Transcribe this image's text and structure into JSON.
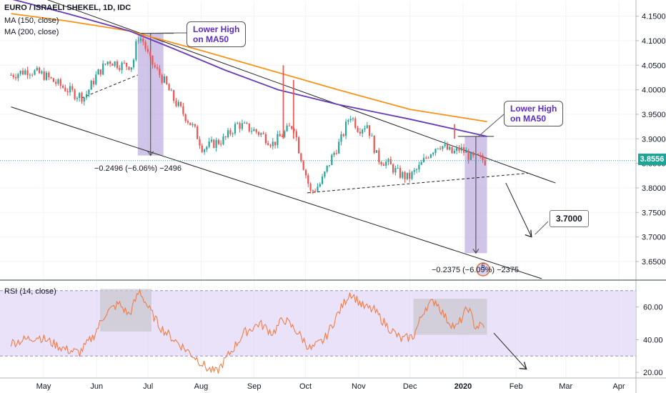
{
  "legend": {
    "title": "EURO / ISRAELI SHEKEL, 1D, IDC",
    "ma150": "MA (150, close)",
    "ma200": "MA (200, close)",
    "rsi": "RSI (14, close)"
  },
  "annotations": {
    "callout_left": [
      "Lower High",
      "on MA50"
    ],
    "callout_right": [
      "Lower High",
      "on MA50"
    ],
    "target_label": "3.7000",
    "measure_left": "−0.2496 (−6.06%) −2496",
    "measure_right": "−0.2375 (−6.09%) −2375",
    "event_badge": "6"
  },
  "current_price": "3.8556",
  "colors": {
    "up": "#26a69a",
    "down": "#ef5350",
    "ma150": "#f7931a",
    "ma200": "#673ab7",
    "rsi_line": "#f4743b",
    "rsi_band": "#e1d5f5",
    "measure_zone": "#b39ddb"
  },
  "chart_data": [
    {
      "type": "candlestick",
      "xlabel": "",
      "ylabel": "",
      "x_ticks": [
        "May",
        "Jun",
        "Jul",
        "Aug",
        "Sep",
        "Oct",
        "Nov",
        "Dec",
        "2020",
        "Feb",
        "Mar",
        "Apr"
      ],
      "y_ticks": [
        3.65,
        3.7,
        3.75,
        3.8,
        3.85,
        3.9,
        3.95,
        4.0,
        4.05,
        4.1,
        4.15
      ],
      "y_tick_labels": [
        "3.6500",
        "3.7000",
        "3.7500",
        "3.8000",
        "3.8500",
        "3.9000",
        "3.9500",
        "4.0000",
        "4.0500",
        "4.1000",
        "4.1500"
      ],
      "ylim": [
        3.615,
        4.18
      ],
      "close_path": [
        [
          "2019-04-12",
          4.03
        ],
        [
          "2019-04-22",
          4.04
        ],
        [
          "2019-05-01",
          4.03
        ],
        [
          "2019-05-10",
          4.01
        ],
        [
          "2019-05-20",
          3.99
        ],
        [
          "2019-05-25",
          3.985
        ],
        [
          "2019-06-01",
          4.03
        ],
        [
          "2019-06-08",
          4.06
        ],
        [
          "2019-06-15",
          4.05
        ],
        [
          "2019-06-22",
          4.05
        ],
        [
          "2019-06-25",
          4.11
        ],
        [
          "2019-06-28",
          4.1
        ],
        [
          "2019-07-02",
          4.06
        ],
        [
          "2019-07-06",
          4.04
        ],
        [
          "2019-07-10",
          4.02
        ],
        [
          "2019-07-16",
          3.98
        ],
        [
          "2019-07-22",
          3.95
        ],
        [
          "2019-07-28",
          3.92
        ],
        [
          "2019-08-02",
          3.88
        ],
        [
          "2019-08-08",
          3.89
        ],
        [
          "2019-08-15",
          3.9
        ],
        [
          "2019-08-22",
          3.93
        ],
        [
          "2019-08-30",
          3.92
        ],
        [
          "2019-09-05",
          3.91
        ],
        [
          "2019-09-12",
          3.89
        ],
        [
          "2019-09-18",
          3.91
        ],
        [
          "2019-09-24",
          3.93
        ],
        [
          "2019-09-27",
          3.88
        ],
        [
          "2019-10-01",
          3.83
        ],
        [
          "2019-10-04",
          3.79
        ],
        [
          "2019-10-10",
          3.81
        ],
        [
          "2019-10-16",
          3.86
        ],
        [
          "2019-10-22",
          3.9
        ],
        [
          "2019-10-27",
          3.95
        ],
        [
          "2019-11-01",
          3.92
        ],
        [
          "2019-11-06",
          3.93
        ],
        [
          "2019-11-12",
          3.86
        ],
        [
          "2019-11-18",
          3.85
        ],
        [
          "2019-11-24",
          3.83
        ],
        [
          "2019-11-30",
          3.82
        ],
        [
          "2019-12-06",
          3.84
        ],
        [
          "2019-12-12",
          3.87
        ],
        [
          "2019-12-18",
          3.89
        ],
        [
          "2019-12-22",
          3.88
        ],
        [
          "2019-12-26",
          3.87
        ],
        [
          "2019-12-30",
          3.88
        ],
        [
          "2020-01-03",
          3.87
        ],
        [
          "2020-01-06",
          3.86
        ],
        [
          "2020-01-10",
          3.86
        ],
        [
          "2020-01-14",
          3.855
        ]
      ],
      "spikes": [
        {
          "x": "2019-09-18",
          "high": 4.05
        },
        {
          "x": "2019-09-24",
          "high": 4.02
        },
        {
          "x": "2019-12-27",
          "high": 3.93
        }
      ],
      "series": [
        {
          "name": "MA (150, close)",
          "color": "#f7931a",
          "points": [
            [
              "2019-04-12",
              4.155
            ],
            [
              "2019-05-15",
              4.14
            ],
            [
              "2019-06-20",
              4.12
            ],
            [
              "2019-08-01",
              4.08
            ],
            [
              "2019-09-10",
              4.04
            ],
            [
              "2019-10-20",
              4.0
            ],
            [
              "2019-12-01",
              3.96
            ],
            [
              "2020-01-15",
              3.935
            ]
          ]
        },
        {
          "name": "MA (200, close)",
          "color": "#673ab7",
          "points": [
            [
              "2019-04-12",
              4.185
            ],
            [
              "2019-05-15",
              4.155
            ],
            [
              "2019-06-20",
              4.12
            ],
            [
              "2019-07-15",
              4.085
            ],
            [
              "2019-08-15",
              4.04
            ],
            [
              "2019-09-15",
              4.0
            ],
            [
              "2019-10-20",
              3.97
            ],
            [
              "2019-12-01",
              3.94
            ],
            [
              "2020-01-15",
              3.905
            ]
          ]
        }
      ],
      "trendlines": [
        {
          "from": [
            "2019-04-28",
            4.19
          ],
          "to": [
            "2020-02-24",
            3.81
          ]
        },
        {
          "from": [
            "2019-04-12",
            3.965
          ],
          "to": [
            "2020-02-16",
            3.615
          ]
        },
        {
          "from": [
            "2019-05-23",
            3.983
          ],
          "to": [
            "2019-06-25",
            4.03
          ],
          "dashed": true
        },
        {
          "from": [
            "2019-10-02",
            3.79
          ],
          "to": [
            "2020-02-08",
            3.83
          ],
          "dashed": true
        },
        {
          "from": [
            "2019-06-26",
            4.115
          ],
          "to": [
            "2019-07-16",
            4.115
          ]
        },
        {
          "from": [
            "2019-12-29",
            3.905
          ],
          "to": [
            "2020-01-19",
            3.905
          ]
        },
        {
          "from": [
            "2020-01-26",
            3.81
          ],
          "to": [
            "2020-02-10",
            3.7
          ],
          "arrow": true
        }
      ],
      "measures": [
        {
          "x_from": "2019-06-25",
          "x_to": "2019-07-10",
          "y_from": 4.115,
          "y_to": 3.866
        },
        {
          "x_from": "2020-01-02",
          "x_to": "2020-01-15",
          "y_from": 3.905,
          "y_to": 3.667
        }
      ],
      "horizontal_line": 3.8556
    },
    {
      "type": "line",
      "title": "",
      "y_ticks": [
        20,
        40,
        60
      ],
      "y_tick_labels": [
        "20.00",
        "40.00",
        "60.00"
      ],
      "ylim": [
        17,
        76
      ],
      "band": [
        30,
        70
      ],
      "series": [
        {
          "name": "RSI (14, close)",
          "color": "#f4743b",
          "points": [
            [
              "2019-04-12",
              38
            ],
            [
              "2019-04-20",
              40
            ],
            [
              "2019-04-28",
              42
            ],
            [
              "2019-05-06",
              38
            ],
            [
              "2019-05-14",
              34
            ],
            [
              "2019-05-22",
              32
            ],
            [
              "2019-05-30",
              42
            ],
            [
              "2019-06-06",
              56
            ],
            [
              "2019-06-14",
              62
            ],
            [
              "2019-06-20",
              55
            ],
            [
              "2019-06-26",
              70
            ],
            [
              "2019-07-02",
              58
            ],
            [
              "2019-07-08",
              48
            ],
            [
              "2019-07-14",
              42
            ],
            [
              "2019-07-22",
              35
            ],
            [
              "2019-07-30",
              28
            ],
            [
              "2019-08-05",
              22
            ],
            [
              "2019-08-10",
              20
            ],
            [
              "2019-08-18",
              32
            ],
            [
              "2019-08-26",
              44
            ],
            [
              "2019-09-04",
              50
            ],
            [
              "2019-09-12",
              44
            ],
            [
              "2019-09-18",
              53
            ],
            [
              "2019-09-26",
              45
            ],
            [
              "2019-10-04",
              34
            ],
            [
              "2019-10-12",
              40
            ],
            [
              "2019-10-20",
              56
            ],
            [
              "2019-10-27",
              69
            ],
            [
              "2019-11-04",
              60
            ],
            [
              "2019-11-10",
              58
            ],
            [
              "2019-11-18",
              48
            ],
            [
              "2019-11-26",
              40
            ],
            [
              "2019-12-03",
              42
            ],
            [
              "2019-12-10",
              60
            ],
            [
              "2019-12-16",
              64
            ],
            [
              "2019-12-22",
              53
            ],
            [
              "2019-12-28",
              47
            ],
            [
              "2020-01-04",
              60
            ],
            [
              "2020-01-08",
              48
            ],
            [
              "2020-01-14",
              49
            ]
          ]
        }
      ],
      "arrow": {
        "from": [
          "2020-01-19",
          44
        ],
        "to": [
          "2020-02-07",
          22
        ]
      },
      "zones": [
        {
          "x_from": "2019-06-03",
          "x_to": "2019-07-03",
          "y_from": 71,
          "y_to": 45
        },
        {
          "x_from": "2019-12-03",
          "x_to": "2020-01-15",
          "y_from": 65,
          "y_to": 43
        }
      ]
    }
  ]
}
